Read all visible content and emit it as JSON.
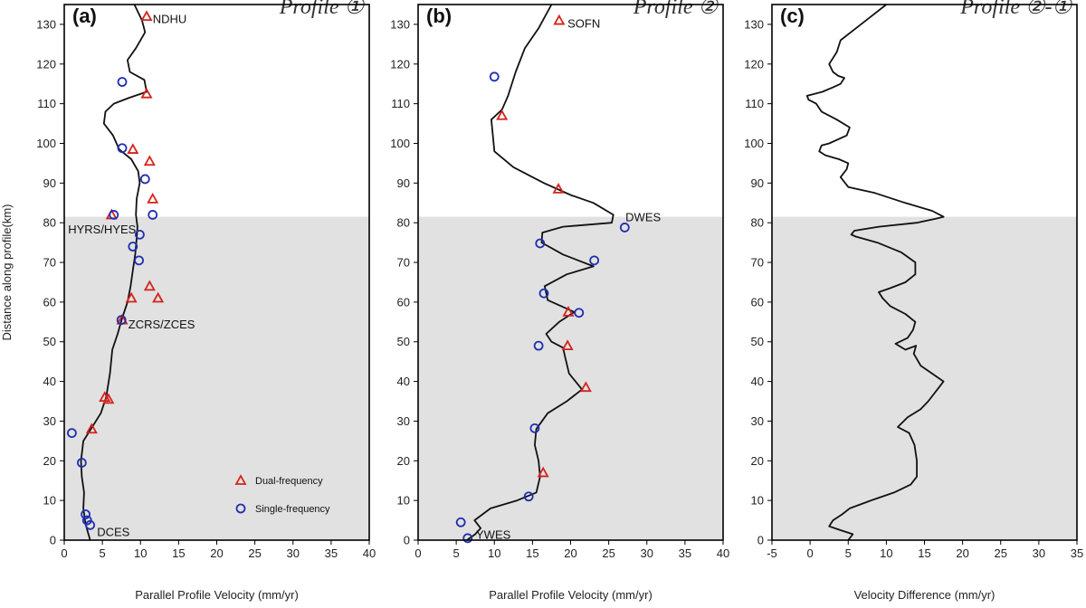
{
  "chart_data": [
    {
      "type": "line",
      "panel_label": "(a)",
      "title_prefix": "Profile",
      "title_symbol": "①",
      "xlabel": "Parallel Profile Velocity (mm/yr)",
      "ylabel": "Distance along profile(km)",
      "xlim": [
        0,
        40
      ],
      "ylim": [
        0,
        135
      ],
      "xticks": [
        0,
        5,
        10,
        15,
        20,
        25,
        30,
        35,
        40
      ],
      "yticks": [
        0,
        10,
        20,
        30,
        40,
        50,
        60,
        70,
        80,
        90,
        100,
        110,
        120,
        130
      ],
      "shaded_below_km": 81.5,
      "curve": [
        [
          3.4,
          0
        ],
        [
          2.8,
          4
        ],
        [
          2.5,
          8
        ],
        [
          2.6,
          12
        ],
        [
          2.3,
          16
        ],
        [
          2.2,
          20
        ],
        [
          2.5,
          25
        ],
        [
          3.5,
          28
        ],
        [
          4.8,
          32
        ],
        [
          5.5,
          36
        ],
        [
          6,
          42
        ],
        [
          6.3,
          48
        ],
        [
          7,
          52
        ],
        [
          7.6,
          56
        ],
        [
          8.3,
          60
        ],
        [
          8.7,
          64
        ],
        [
          9,
          68
        ],
        [
          9.3,
          72
        ],
        [
          9.5,
          76
        ],
        [
          9.6,
          79
        ],
        [
          9.4,
          82
        ],
        [
          9.5,
          86
        ],
        [
          9.9,
          90
        ],
        [
          9.7,
          93
        ],
        [
          8.8,
          96
        ],
        [
          7.2,
          98.5
        ],
        [
          6.4,
          102
        ],
        [
          5.2,
          105
        ],
        [
          5.4,
          108
        ],
        [
          6.5,
          110
        ],
        [
          8.5,
          111.5
        ],
        [
          10.8,
          113
        ],
        [
          10.5,
          116
        ],
        [
          8.6,
          118
        ],
        [
          8.3,
          121
        ],
        [
          9.4,
          124
        ],
        [
          10.6,
          128
        ],
        [
          10.2,
          131
        ],
        [
          9.2,
          135
        ]
      ],
      "dual_frequency": [
        [
          10.8,
          132
        ],
        [
          10.8,
          112.5
        ],
        [
          9,
          98.5
        ],
        [
          11.2,
          95.5
        ],
        [
          11.6,
          86
        ],
        [
          6.2,
          82
        ],
        [
          11.2,
          64
        ],
        [
          12.3,
          61
        ],
        [
          8.8,
          61
        ],
        [
          7.6,
          55.5
        ],
        [
          5.3,
          36
        ],
        [
          5.8,
          35.5
        ],
        [
          3.6,
          28
        ]
      ],
      "single_frequency": [
        [
          7.6,
          115.5
        ],
        [
          7.6,
          98.8
        ],
        [
          10.6,
          91
        ],
        [
          6.5,
          82
        ],
        [
          11.6,
          82
        ],
        [
          9.9,
          77
        ],
        [
          9,
          74
        ],
        [
          9.8,
          70.5
        ],
        [
          7.5,
          55.5
        ],
        [
          1,
          27
        ],
        [
          2.3,
          19.5
        ],
        [
          2.8,
          6.5
        ],
        [
          3,
          5
        ],
        [
          3.4,
          3.8
        ]
      ],
      "station_labels": [
        {
          "text": "NDHU",
          "x": 11.6,
          "y": 131.5
        },
        {
          "text": "HYRS/HYES",
          "x": 0.5,
          "y": 78.5
        },
        {
          "text": "ZCRS/ZCES",
          "x": 8.4,
          "y": 54.5
        },
        {
          "text": "DCES",
          "x": 4.3,
          "y": 2.2
        }
      ],
      "legend": [
        {
          "marker": "triangle",
          "label": "Dual-frequency"
        },
        {
          "marker": "circle",
          "label": "Single-frequency"
        }
      ]
    },
    {
      "type": "line",
      "panel_label": "(b)",
      "title_prefix": "Profile",
      "title_symbol": "②",
      "xlabel": "Parallel Profile Velocity (mm/yr)",
      "xlim": [
        0,
        40
      ],
      "ylim": [
        0,
        135
      ],
      "xticks": [
        0,
        5,
        10,
        15,
        20,
        25,
        30,
        35,
        40
      ],
      "yticks": [
        0,
        10,
        20,
        30,
        40,
        50,
        60,
        70,
        80,
        90,
        100,
        110,
        120,
        130
      ],
      "shaded_below_km": 81.5,
      "curve": [
        [
          6.4,
          0
        ],
        [
          7.5,
          1.5
        ],
        [
          8.2,
          3
        ],
        [
          7.4,
          5
        ],
        [
          9.5,
          8
        ],
        [
          13,
          10
        ],
        [
          15.5,
          12
        ],
        [
          16,
          16
        ],
        [
          15.8,
          20
        ],
        [
          15.3,
          24
        ],
        [
          15.5,
          28
        ],
        [
          17,
          32
        ],
        [
          19.5,
          35
        ],
        [
          21.5,
          38
        ],
        [
          19.8,
          42
        ],
        [
          19.3,
          46
        ],
        [
          19,
          48.5
        ],
        [
          17.5,
          50
        ],
        [
          16.8,
          52
        ],
        [
          18.5,
          55
        ],
        [
          20.5,
          57.5
        ],
        [
          17,
          60.5
        ],
        [
          16.6,
          64
        ],
        [
          19.5,
          67
        ],
        [
          23,
          69
        ],
        [
          19,
          72
        ],
        [
          16.2,
          75
        ],
        [
          16.3,
          77.5
        ],
        [
          19,
          79
        ],
        [
          25.4,
          80
        ],
        [
          25.6,
          82
        ],
        [
          23,
          85
        ],
        [
          20,
          87
        ],
        [
          16.5,
          90
        ],
        [
          12.5,
          94
        ],
        [
          10,
          98
        ],
        [
          9.8,
          102
        ],
        [
          9.6,
          106
        ],
        [
          11,
          108.5
        ],
        [
          11.8,
          112
        ],
        [
          12.8,
          118
        ],
        [
          14,
          124
        ],
        [
          15.8,
          129
        ],
        [
          17.5,
          135
        ]
      ],
      "dual_frequency": [
        [
          18.5,
          131
        ],
        [
          11,
          107
        ],
        [
          18.4,
          88.5
        ],
        [
          19.7,
          57.5
        ],
        [
          19.6,
          49
        ],
        [
          22,
          38.5
        ],
        [
          16.4,
          17
        ]
      ],
      "single_frequency": [
        [
          10,
          116.8
        ],
        [
          27.1,
          78.8
        ],
        [
          16,
          74.8
        ],
        [
          23.1,
          70.5
        ],
        [
          16.5,
          62.2
        ],
        [
          21.1,
          57.3
        ],
        [
          15.8,
          49
        ],
        [
          15.3,
          28.2
        ],
        [
          14.5,
          11
        ],
        [
          5.6,
          4.5
        ],
        [
          6.5,
          0.5
        ]
      ],
      "station_labels": [
        {
          "text": "SOFN",
          "x": 19.6,
          "y": 130.3
        },
        {
          "text": "DWES",
          "x": 27.2,
          "y": 81.5
        },
        {
          "text": "YWES",
          "x": 7.6,
          "y": 1.5
        }
      ]
    },
    {
      "type": "line",
      "panel_label": "(c)",
      "title_prefix": "Profile",
      "title_symbol": "②-①",
      "xlabel": "Velocity Difference (mm/yr)",
      "xlim": [
        -5,
        35
      ],
      "ylim": [
        0,
        135
      ],
      "xticks": [
        -5,
        0,
        5,
        10,
        15,
        20,
        25,
        30,
        35
      ],
      "yticks": [
        0,
        10,
        20,
        30,
        40,
        50,
        60,
        70,
        80,
        90,
        100,
        110,
        120,
        130
      ],
      "shaded_below_km": 81.5,
      "curve": [
        [
          5,
          0
        ],
        [
          5.6,
          1.5
        ],
        [
          4,
          2.5
        ],
        [
          2.5,
          3.5
        ],
        [
          3,
          5
        ],
        [
          4.2,
          6.5
        ],
        [
          5.2,
          8
        ],
        [
          8,
          10
        ],
        [
          11,
          12
        ],
        [
          13.2,
          14
        ],
        [
          14,
          16
        ],
        [
          14,
          20
        ],
        [
          13.7,
          24
        ],
        [
          13,
          27
        ],
        [
          11.5,
          28.5
        ],
        [
          12.8,
          31
        ],
        [
          14.5,
          33
        ],
        [
          15.5,
          35
        ],
        [
          17.5,
          40
        ],
        [
          14.5,
          44
        ],
        [
          13.6,
          47
        ],
        [
          13.9,
          49
        ],
        [
          12.5,
          48
        ],
        [
          11.2,
          49.5
        ],
        [
          12.8,
          51
        ],
        [
          13.5,
          53
        ],
        [
          13.8,
          55
        ],
        [
          12.5,
          57
        ],
        [
          10.5,
          59
        ],
        [
          9.5,
          61
        ],
        [
          9,
          62.5
        ],
        [
          10.5,
          63.5
        ],
        [
          12.5,
          65
        ],
        [
          13.8,
          67
        ],
        [
          13.8,
          70
        ],
        [
          12,
          72.5
        ],
        [
          8.8,
          75
        ],
        [
          6,
          76.5
        ],
        [
          5.4,
          77
        ],
        [
          5.8,
          78
        ],
        [
          9,
          79
        ],
        [
          14,
          80
        ],
        [
          16.5,
          81
        ],
        [
          17.5,
          81.5
        ],
        [
          16,
          83
        ],
        [
          12.5,
          85
        ],
        [
          8.5,
          87.5
        ],
        [
          5,
          89
        ],
        [
          4,
          91.5
        ],
        [
          4.8,
          93.5
        ],
        [
          5,
          95
        ],
        [
          3.8,
          96
        ],
        [
          2,
          97
        ],
        [
          1.2,
          98
        ],
        [
          1.5,
          99.5
        ],
        [
          2.5,
          100
        ],
        [
          4.8,
          102
        ],
        [
          5.2,
          104
        ],
        [
          3.5,
          106
        ],
        [
          1.5,
          108
        ],
        [
          0.8,
          110
        ],
        [
          -0.2,
          111
        ],
        [
          -0.4,
          112
        ],
        [
          1.6,
          113
        ],
        [
          3.1,
          114.2
        ],
        [
          4,
          115
        ],
        [
          4.5,
          116.5
        ],
        [
          3.7,
          117
        ],
        [
          3,
          118
        ],
        [
          2.5,
          120
        ],
        [
          3.5,
          123
        ],
        [
          4,
          126
        ],
        [
          6,
          129
        ],
        [
          8,
          132
        ],
        [
          10,
          135
        ]
      ]
    }
  ]
}
